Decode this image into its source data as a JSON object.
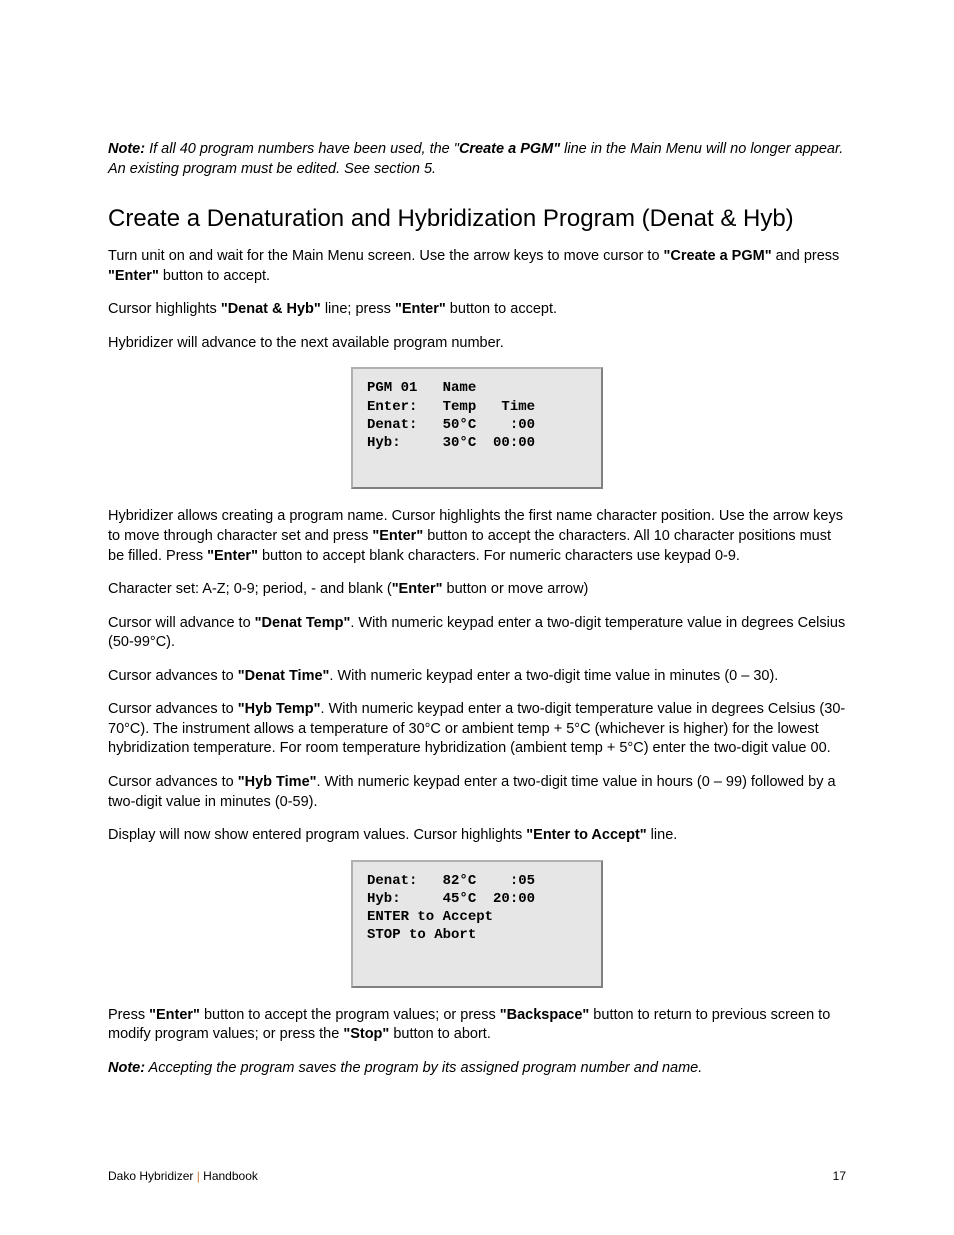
{
  "note1": {
    "prefix": "Note:",
    "body_a": " If all 40 program numbers have been used, the \"",
    "body_b": "Create a PGM\"",
    "body_c": " line in the Main Menu will no longer appear. An existing program must be edited. See section 5."
  },
  "heading": "Create a Denaturation and Hybridization Program (Denat & Hyb)",
  "p1_a": "Turn unit on and wait for the Main Menu screen. Use the arrow keys to move cursor to ",
  "p1_b": "\"Create a PGM\"",
  "p1_c": " and press ",
  "p1_d": "\"Enter\"",
  "p1_e": " button to accept.",
  "p2_a": "Cursor highlights ",
  "p2_b": "\"Denat & Hyb\"",
  "p2_c": " line; press ",
  "p2_d": "\"Enter\"",
  "p2_e": " button to accept.",
  "p3": "Hybridizer will advance to the next available program number.",
  "display1": "PGM 01   Name\nEnter:   Temp   Time\nDenat:   50°C    :00\nHyb:     30°C  00:00",
  "p4_a": "Hybridizer allows creating a program name. Cursor highlights the first name character position. Use the arrow keys to move through character set and press ",
  "p4_b": "\"Enter\"",
  "p4_c": " button to accept the characters. All 10 character positions must be filled. Press ",
  "p4_d": "\"Enter\"",
  "p4_e": " button to accept blank characters. For numeric characters use keypad 0-9.",
  "p5_a": "Character set: A-Z; 0-9; period, - and blank (",
  "p5_b": "\"Enter\"",
  "p5_c": " button or move arrow)",
  "p6_a": "Cursor will advance to ",
  "p6_b": "\"Denat Temp\"",
  "p6_c": ". With numeric keypad enter a two-digit temperature value in degrees Celsius (50-99°C).",
  "p7_a": "Cursor advances to ",
  "p7_b": "\"Denat Time\"",
  "p7_c": ". With numeric keypad enter a two-digit time value in minutes (0 – 30).",
  "p8_a": "Cursor advances to ",
  "p8_b": "\"Hyb Temp\"",
  "p8_c": ". With numeric keypad enter a two-digit temperature value in degrees Celsius (30-70°C).  The instrument allows a temperature of 30°C or ambient temp + 5°C  (whichever is higher) for the lowest hybridization temperature. For room temperature hybridization (ambient temp + 5°C) enter the two-digit value 00.",
  "p9_a": "Cursor advances to ",
  "p9_b": "\"Hyb Time\"",
  "p9_c": ". With numeric keypad enter a two-digit time value in hours (0 – 99) followed by a two-digit value in minutes (0-59).",
  "p10_a": "Display will now show entered program values. Cursor highlights ",
  "p10_b": "\"Enter to Accept\"",
  "p10_c": " line.",
  "display2": "Denat:   82°C    :05\nHyb:     45°C  20:00\nENTER to Accept\nSTOP to Abort",
  "p11_a": "Press ",
  "p11_b": "\"Enter\"",
  "p11_c": " button to accept the program values; or press ",
  "p11_d": "\"Backspace\"",
  "p11_e": " button to return to previous screen to modify program values; or press the ",
  "p11_f": "\"Stop\"",
  "p11_g": " button to abort.",
  "note2": {
    "prefix": "Note:",
    "body": " Accepting the program saves the program by its assigned program number and name."
  },
  "footer": {
    "left_a": "Dako Hybridizer ",
    "sep": "|",
    "left_b": " Handbook",
    "page": "17"
  }
}
